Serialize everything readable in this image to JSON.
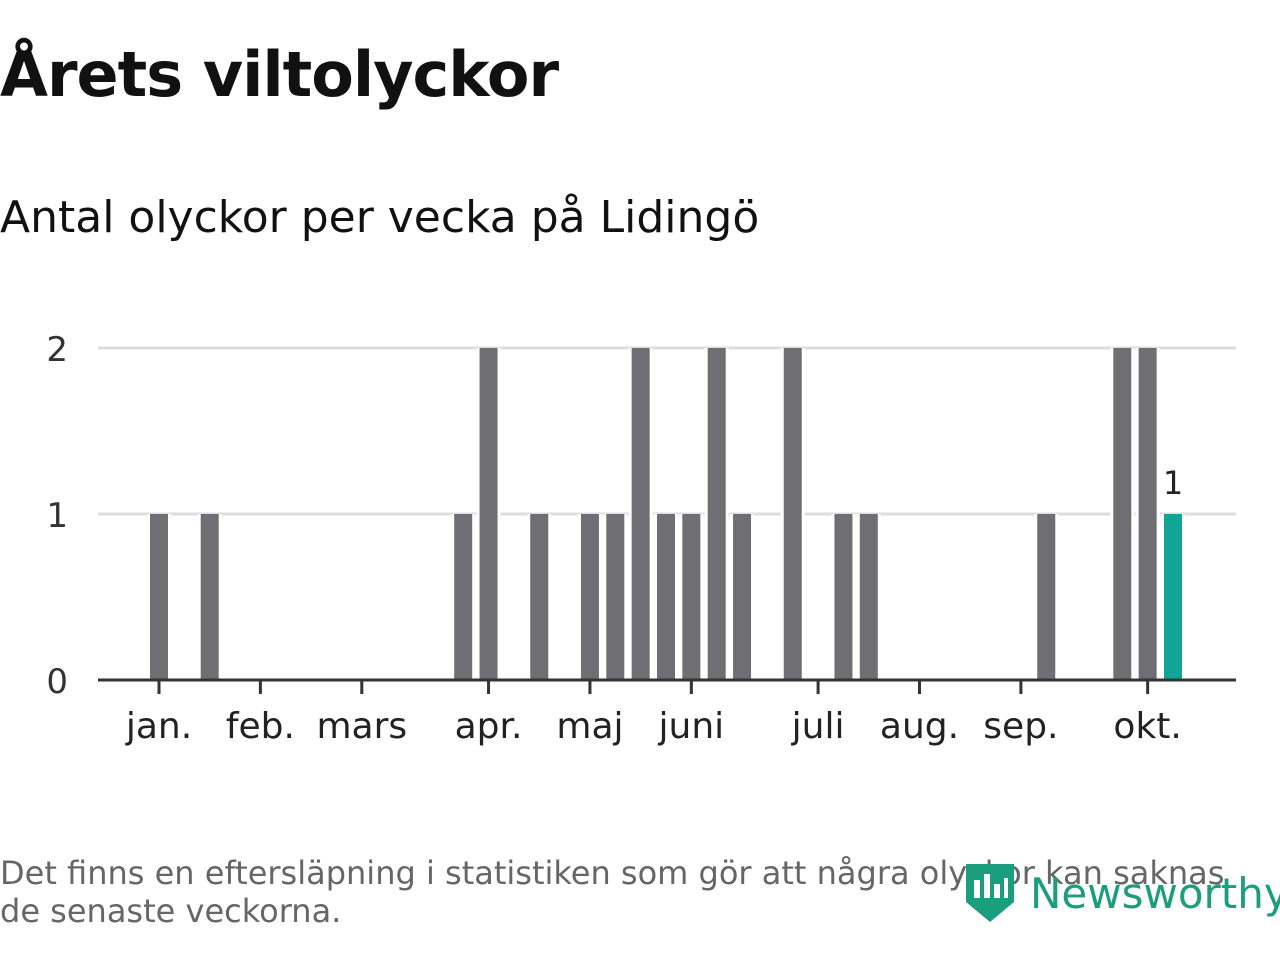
{
  "header": {
    "title": "Årets viltolyckor",
    "subtitle": "Antal olyckor per vecka på Lidingö"
  },
  "footer": {
    "note": "Det finns en eftersläpning i statistiken som gör att några olyckor kan saknas de senaste veckorna.",
    "brand": "Newsworthy"
  },
  "colors": {
    "bar": "#6e6e73",
    "highlight": "#10a594",
    "grid": "#dddddd",
    "axis": "#333333",
    "brand": "#1a9e7e"
  },
  "chart_data": {
    "type": "bar",
    "title": "Årets viltolyckor",
    "subtitle": "Antal olyckor per vecka på Lidingö",
    "xlabel": "",
    "ylabel": "",
    "ylim": [
      0,
      2
    ],
    "yticks": [
      0,
      1,
      2
    ],
    "grid": true,
    "x_unit": "week",
    "x_range": [
      1,
      44
    ],
    "month_ticks": [
      {
        "label": "jan.",
        "week": 1
      },
      {
        "label": "feb.",
        "week": 5
      },
      {
        "label": "mars",
        "week": 9
      },
      {
        "label": "apr.",
        "week": 14
      },
      {
        "label": "maj",
        "week": 18
      },
      {
        "label": "juni",
        "week": 22
      },
      {
        "label": "juli",
        "week": 27
      },
      {
        "label": "aug.",
        "week": 31
      },
      {
        "label": "sep.",
        "week": 35
      },
      {
        "label": "okt.",
        "week": 40
      }
    ],
    "series": [
      {
        "name": "Antal olyckor",
        "points": [
          {
            "week": 1,
            "value": 1
          },
          {
            "week": 3,
            "value": 1
          },
          {
            "week": 13,
            "value": 1
          },
          {
            "week": 14,
            "value": 2
          },
          {
            "week": 16,
            "value": 1
          },
          {
            "week": 18,
            "value": 1
          },
          {
            "week": 19,
            "value": 1
          },
          {
            "week": 20,
            "value": 2
          },
          {
            "week": 21,
            "value": 1
          },
          {
            "week": 22,
            "value": 1
          },
          {
            "week": 23,
            "value": 2
          },
          {
            "week": 24,
            "value": 1
          },
          {
            "week": 26,
            "value": 2
          },
          {
            "week": 28,
            "value": 1
          },
          {
            "week": 29,
            "value": 1
          },
          {
            "week": 36,
            "value": 1
          },
          {
            "week": 39,
            "value": 2
          },
          {
            "week": 40,
            "value": 2
          },
          {
            "week": 41,
            "value": 1,
            "highlight": true,
            "label": "1"
          }
        ]
      }
    ]
  }
}
